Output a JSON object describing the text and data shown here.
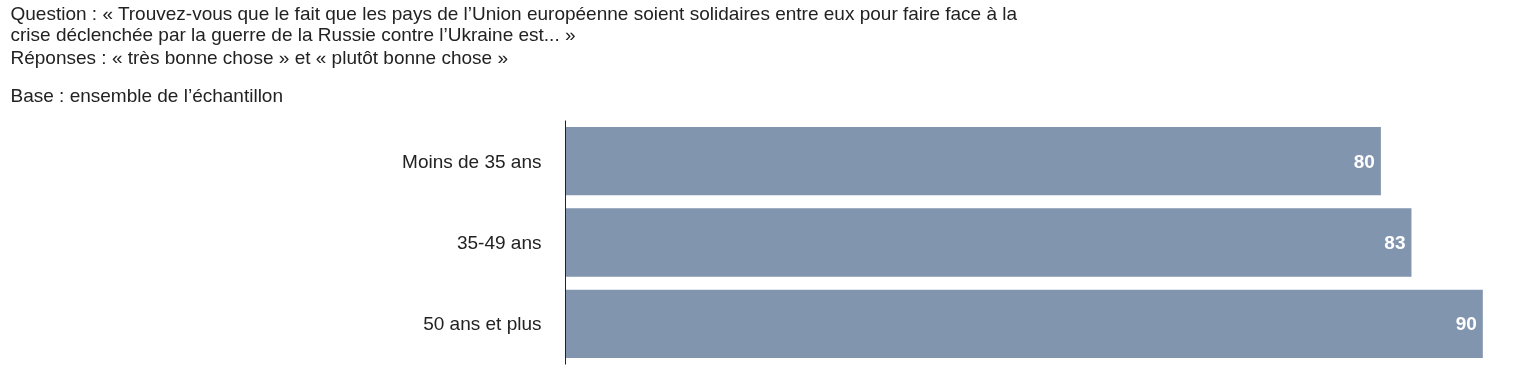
{
  "chart_data": {
    "type": "bar",
    "orientation": "horizontal",
    "title": "Question : « Trouvez-vous que le fait que les pays de l’Union européenne soient solidaires entre eux pour faire face à la crise déclenchée par la guerre de la Russie contre l’Ukraine est... »",
    "subtitle": "Réponses : « très bonne chose » et « plutôt bonne chose »",
    "annotations": [
      "Base : ensemble de l’échantillon"
    ],
    "categories": [
      "Moins de 35 ans",
      "35-49 ans",
      "50 ans et plus"
    ],
    "values": [
      80,
      83,
      90
    ],
    "color": "#8295ae",
    "data_labels": true,
    "grid": false
  }
}
